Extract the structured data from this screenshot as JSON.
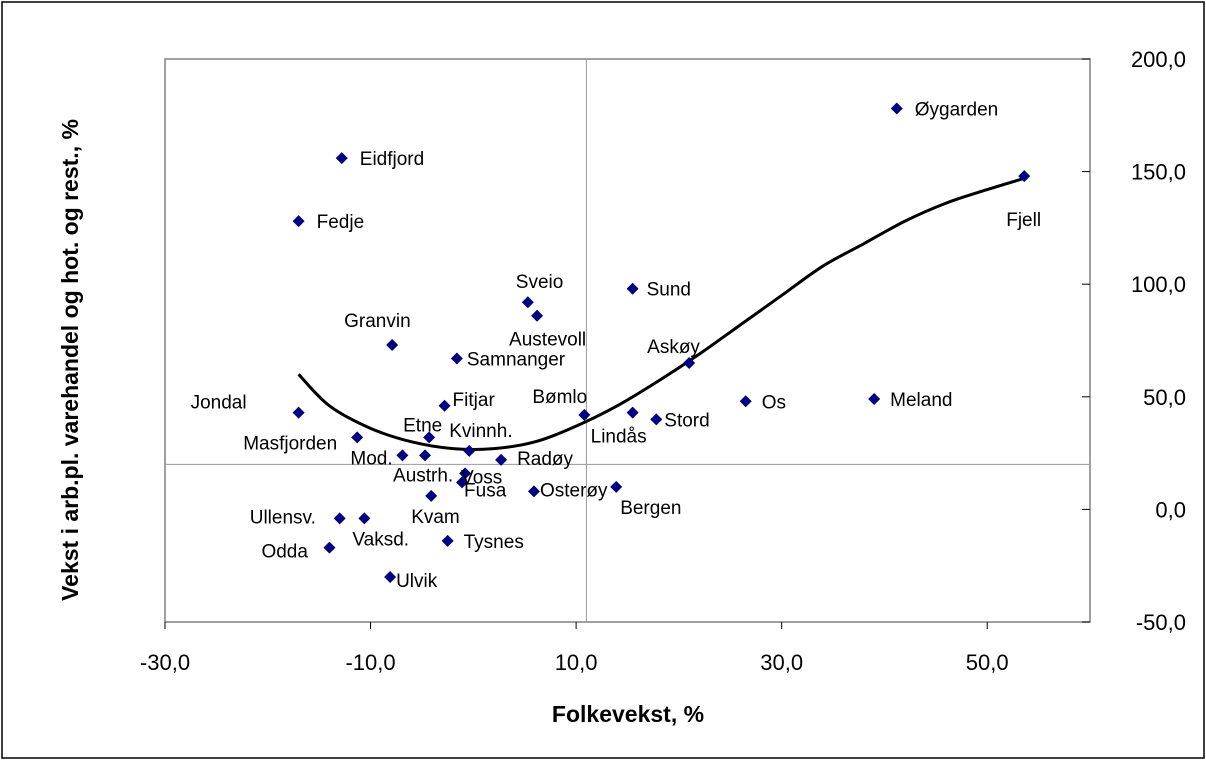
{
  "chart_data": {
    "type": "scatter",
    "title": "",
    "xlabel": "Folkevekst, %",
    "ylabel": "Vekst i arb.pl. varehandel og hot. og rest., %",
    "xlim": [
      -30,
      60
    ],
    "ylim": [
      -50,
      200
    ],
    "x_ticks": [
      "-30,0",
      "-10,0",
      "10,0",
      "30,0",
      "50,0"
    ],
    "x_tick_values": [
      -30,
      -10,
      10,
      30,
      50
    ],
    "y_ticks": [
      "200,0",
      "150,0",
      "100,0",
      "50,0",
      "0,0",
      "-50,0"
    ],
    "y_tick_values": [
      200,
      150,
      100,
      50,
      0,
      -50
    ],
    "reference_lines": {
      "x": 11,
      "y": 20
    },
    "marker_color": "#000080",
    "points": [
      {
        "label": "Øygarden",
        "x": 41.2,
        "y": 178
      },
      {
        "label": "Fjell",
        "x": 53.6,
        "y": 148
      },
      {
        "label": "Eidfjord",
        "x": -12.8,
        "y": 156
      },
      {
        "label": "Fedje",
        "x": -17.0,
        "y": 128
      },
      {
        "label": "Sund",
        "x": 15.5,
        "y": 98
      },
      {
        "label": "Sveio",
        "x": 5.3,
        "y": 92
      },
      {
        "label": "Austevoll",
        "x": 6.2,
        "y": 86
      },
      {
        "label": "Granvin",
        "x": -7.9,
        "y": 73
      },
      {
        "label": "Samnanger",
        "x": -1.6,
        "y": 67
      },
      {
        "label": "Askøy",
        "x": 21.0,
        "y": 65
      },
      {
        "label": "Jondal",
        "x": -17.0,
        "y": 43
      },
      {
        "label": "Fitjar",
        "x": -2.8,
        "y": 46
      },
      {
        "label": "Bømlo",
        "x": 10.8,
        "y": 42
      },
      {
        "label": "Lindås",
        "x": 15.5,
        "y": 43
      },
      {
        "label": "Stord",
        "x": 17.8,
        "y": 40
      },
      {
        "label": "Os",
        "x": 26.5,
        "y": 48
      },
      {
        "label": "Meland",
        "x": 39.0,
        "y": 49
      },
      {
        "label": "Masfjorden",
        "x": -11.3,
        "y": 32
      },
      {
        "label": "Etne",
        "x": -4.3,
        "y": 32
      },
      {
        "label": "Kvinnh.",
        "x": -0.4,
        "y": 26
      },
      {
        "label": "Mod.",
        "x": -6.9,
        "y": 24
      },
      {
        "label": "Austrh.",
        "x": -4.7,
        "y": 24
      },
      {
        "label": "Radøy",
        "x": 2.7,
        "y": 22
      },
      {
        "label": "Voss",
        "x": -0.8,
        "y": 16
      },
      {
        "label": "Fusa",
        "x": -1.1,
        "y": 12
      },
      {
        "label": "Osterøy",
        "x": 5.9,
        "y": 8
      },
      {
        "label": "Bergen",
        "x": 13.9,
        "y": 10
      },
      {
        "label": "Kvam",
        "x": -4.1,
        "y": 6
      },
      {
        "label": "Ullensv.",
        "x": -13.0,
        "y": -4
      },
      {
        "label": "Vaksd.",
        "x": -10.6,
        "y": -4
      },
      {
        "label": "Tysnes",
        "x": -2.5,
        "y": -14
      },
      {
        "label": "Odda",
        "x": -14.0,
        "y": -17
      },
      {
        "label": "Ulvik",
        "x": -8.1,
        "y": -30
      }
    ],
    "trendline": {
      "type": "polynomial",
      "x": [
        -17.0,
        -14.0,
        -10.0,
        -6.0,
        -2.0,
        2.0,
        6.0,
        10.0,
        14.0,
        18.0,
        22.0,
        26.0,
        30.0,
        34.0,
        38.0,
        42.0,
        46.0,
        50.0,
        53.6
      ],
      "y": [
        60,
        46,
        36,
        30,
        27,
        27,
        30,
        37,
        46,
        57,
        69,
        82,
        95,
        108,
        118,
        128,
        136,
        142,
        147
      ]
    }
  }
}
